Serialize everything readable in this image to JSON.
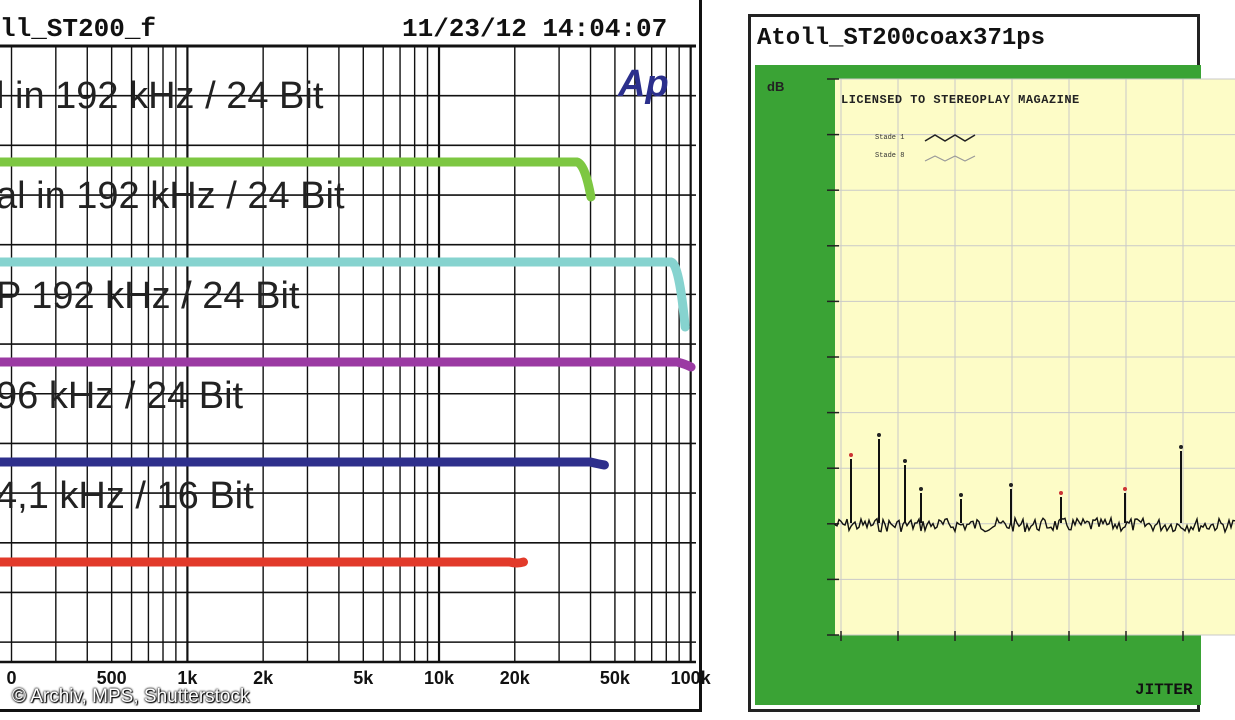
{
  "left_chart": {
    "header_left": "ll_ST200_f",
    "header_right": "11/23/12 14:04:07",
    "logo": "Ap",
    "lines": [
      {
        "label": "l in  192 kHz / 24 Bit",
        "color": "#7dc742",
        "end_hz": 38000,
        "end_drop": 0.35
      },
      {
        "label": "al in  192 kHz / 24 Bit",
        "color": "#86d3cf",
        "end_hz": 90000,
        "end_drop": 0.65
      },
      {
        "label": "P 192 kHz / 24 Bit",
        "color": "#9b3aa3",
        "end_hz": 95000,
        "end_drop": 0.05
      },
      {
        "label": "96 kHz / 24 Bit",
        "color": "#2e2f8c",
        "end_hz": 43000,
        "end_drop": 0.03
      },
      {
        "label": "4,1 kHz / 16 Bit",
        "color": "#e23a2a",
        "end_hz": 20500,
        "end_drop": 0
      }
    ],
    "x_ticks": [
      "0",
      "500",
      "1k",
      "2k",
      "5k",
      "10k",
      "20k",
      "50k",
      "100k"
    ],
    "x_tick_values": [
      200,
      500,
      1000,
      2000,
      5000,
      10000,
      20000,
      50000,
      100000
    ]
  },
  "right_chart": {
    "title": "Atoll_ST200coax371ps",
    "ylabel": "dB",
    "license": "LICENSED TO STEREOPLAY MAGAZINE",
    "legend": [
      "Stade 1",
      "Stade 8"
    ],
    "xlabel": "JITTER",
    "colors": {
      "frame": "#3aa335",
      "plot_bg": "#fdfcc7",
      "noise": "#111111"
    }
  },
  "credit": "© Archiv, MPS, Shutterstock"
}
